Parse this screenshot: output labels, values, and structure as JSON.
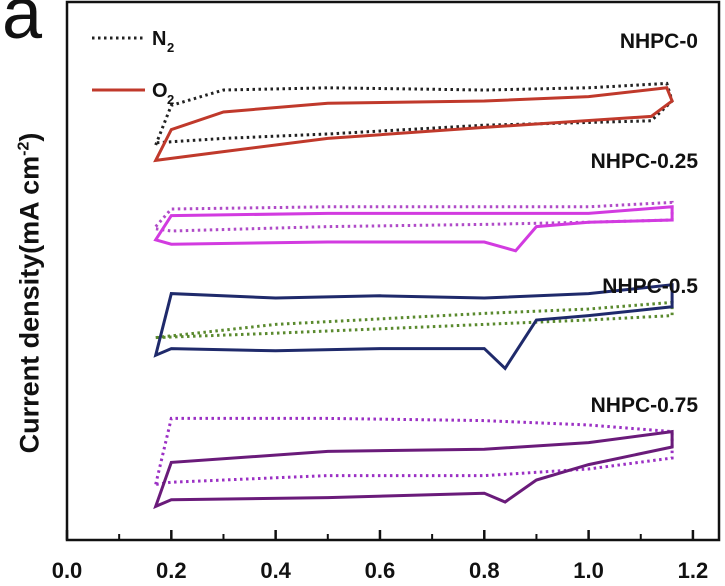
{
  "panel_label": "a",
  "chart_data": {
    "type": "line",
    "ylabel": "Current density(mA cm",
    "ylabel_sup": "-2",
    "xlim": [
      0.0,
      1.25
    ],
    "xticks": [
      "0.0",
      "0.2",
      "0.4",
      "0.6",
      "0.8",
      "1.0",
      "1.2"
    ],
    "legend": [
      {
        "label": "N",
        "sub": "2",
        "style": "dotted",
        "color": "#222222"
      },
      {
        "label": "O",
        "sub": "2",
        "style": "solid",
        "color": "#c0392b"
      }
    ],
    "series": [
      {
        "name": "NHPC-0",
        "n2_color": "#222222",
        "o2_color": "#c0392b",
        "n2": {
          "x": [
            0.17,
            0.2,
            0.3,
            0.5,
            0.8,
            1.0,
            1.15,
            1.16,
            1.12,
            0.8,
            0.5,
            0.3,
            0.17
          ],
          "y": [
            -1.5,
            0.3,
            1.0,
            1.1,
            1.0,
            1.1,
            1.3,
            0.5,
            -0.4,
            -0.6,
            -1.0,
            -1.2,
            -1.4
          ]
        },
        "o2": {
          "x": [
            0.17,
            0.2,
            0.3,
            0.5,
            0.8,
            1.0,
            1.15,
            1.16,
            1.12,
            0.8,
            0.5,
            0.3,
            0.17
          ],
          "y": [
            -2.2,
            -0.8,
            0.0,
            0.4,
            0.5,
            0.7,
            1.1,
            0.5,
            -0.2,
            -0.7,
            -1.2,
            -1.8,
            -2.2
          ]
        }
      },
      {
        "name": "NHPC-0.25",
        "n2_color": "#b04cc8",
        "o2_color": "#d23be0",
        "n2": {
          "x": [
            0.17,
            0.2,
            0.5,
            0.8,
            1.0,
            1.16,
            1.16,
            1.0,
            0.8,
            0.5,
            0.2,
            0.17
          ],
          "y": [
            -0.3,
            0.5,
            0.6,
            0.6,
            0.6,
            0.8,
            0.0,
            -0.1,
            -0.2,
            -0.3,
            -0.5,
            -0.4
          ]
        },
        "o2": {
          "x": [
            0.17,
            0.2,
            0.5,
            0.8,
            1.0,
            1.16,
            1.16,
            1.0,
            0.9,
            0.86,
            0.8,
            0.5,
            0.2,
            0.17
          ],
          "y": [
            -0.9,
            0.2,
            0.3,
            0.3,
            0.3,
            0.6,
            0.0,
            -0.1,
            -0.3,
            -1.4,
            -1.0,
            -1.0,
            -1.1,
            -0.9
          ]
        }
      },
      {
        "name": "NHPC-0.5",
        "n2_color": "#5a8a2e",
        "o2_color": "#1f2a6b",
        "n2": {
          "x": [
            0.17,
            0.4,
            0.8,
            1.0,
            1.16,
            1.16,
            1.0,
            0.8,
            0.4,
            0.17
          ],
          "y": [
            -0.8,
            -0.2,
            0.3,
            0.5,
            0.8,
            0.2,
            0.0,
            -0.2,
            -0.6,
            -0.8
          ]
        },
        "o2": {
          "x": [
            0.17,
            0.2,
            0.4,
            0.6,
            0.8,
            1.0,
            1.16,
            1.16,
            1.0,
            0.9,
            0.84,
            0.8,
            0.6,
            0.4,
            0.2,
            0.17
          ],
          "y": [
            -1.6,
            1.2,
            1.0,
            1.1,
            1.0,
            1.2,
            1.6,
            0.6,
            0.2,
            0.0,
            -2.2,
            -1.3,
            -1.3,
            -1.4,
            -1.3,
            -1.6
          ]
        }
      },
      {
        "name": "NHPC-0.75",
        "n2_color": "#9b30c4",
        "o2_color": "#6a1b7a",
        "n2": {
          "x": [
            0.17,
            0.2,
            0.5,
            0.8,
            1.0,
            1.16,
            1.16,
            1.0,
            0.8,
            0.5,
            0.2,
            0.17
          ],
          "y": [
            -1.2,
            1.8,
            1.8,
            1.7,
            1.5,
            1.2,
            0.0,
            -0.5,
            -0.8,
            -0.8,
            -1.1,
            -1.2
          ]
        },
        "o2": {
          "x": [
            0.17,
            0.2,
            0.5,
            0.8,
            1.0,
            1.16,
            1.16,
            1.0,
            0.9,
            0.84,
            0.8,
            0.5,
            0.2,
            0.17
          ],
          "y": [
            -2.2,
            -0.2,
            0.3,
            0.4,
            0.7,
            1.2,
            0.5,
            -0.3,
            -1.0,
            -2.0,
            -1.6,
            -1.8,
            -1.9,
            -2.2
          ]
        }
      }
    ]
  }
}
